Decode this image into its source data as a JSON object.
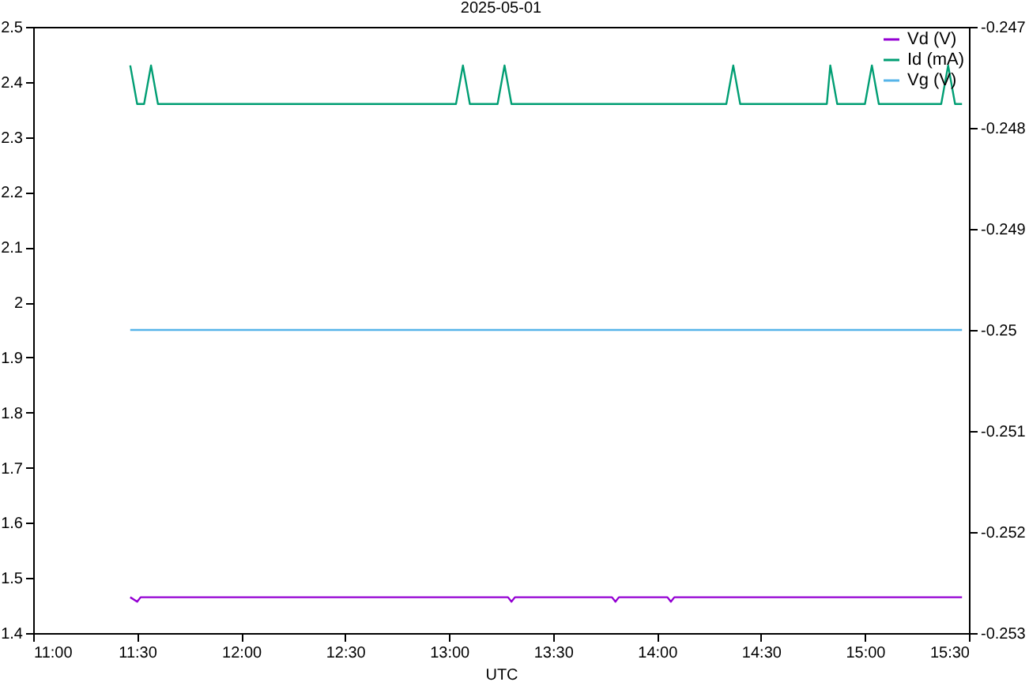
{
  "chart_data": {
    "type": "line",
    "title": "2025-05-01",
    "xlabel": "UTC",
    "xlim": [
      "2025-05-01T11:00",
      "2025-05-01T15:30"
    ],
    "xticks": [
      {
        "value": "2025-05-01T11:00",
        "label": "11:00"
      },
      {
        "value": "2025-05-01T11:30",
        "label": "11:30"
      },
      {
        "value": "2025-05-01T12:00",
        "label": "12:00"
      },
      {
        "value": "2025-05-01T12:30",
        "label": "12:30"
      },
      {
        "value": "2025-05-01T13:00",
        "label": "13:00"
      },
      {
        "value": "2025-05-01T13:30",
        "label": "13:30"
      },
      {
        "value": "2025-05-01T14:00",
        "label": "14:00"
      },
      {
        "value": "2025-05-01T14:30",
        "label": "14:30"
      },
      {
        "value": "2025-05-01T15:00",
        "label": "15:00"
      },
      {
        "value": "2025-05-01T15:30",
        "label": "15:30"
      }
    ],
    "ylim": [
      1.4,
      2.5
    ],
    "yticks": [
      1.4,
      1.5,
      1.6,
      1.7,
      1.8,
      1.9,
      2,
      2.1,
      2.2,
      2.3,
      2.4,
      2.5
    ],
    "y2lim": [
      -0.253,
      -0.247
    ],
    "y2ticks": [
      -0.253,
      -0.252,
      -0.251,
      -0.25,
      -0.249,
      -0.248,
      -0.247
    ],
    "grid": false,
    "legend": "top right",
    "series": [
      {
        "name": "Vd (V)",
        "color": "#9400d3",
        "x": [
          "2025-05-01T11:28",
          "2025-05-01T11:30",
          "2025-05-01T11:31",
          "2025-05-01T13:17",
          "2025-05-01T13:18",
          "2025-05-01T13:19",
          "2025-05-01T13:47",
          "2025-05-01T13:48",
          "2025-05-01T13:49",
          "2025-05-01T14:03",
          "2025-05-01T14:04",
          "2025-05-01T14:05",
          "2025-05-01T15:28"
        ],
        "values": [
          1.465,
          1.457,
          1.465,
          1.465,
          1.457,
          1.465,
          1.465,
          1.457,
          1.465,
          1.465,
          1.457,
          1.465,
          1.465
        ]
      },
      {
        "name": "Id (mA)",
        "color": "#009e73",
        "x": [
          "2025-05-01T11:28",
          "2025-05-01T11:30",
          "2025-05-01T11:32",
          "2025-05-01T11:34",
          "2025-05-01T11:36",
          "2025-05-01T13:02",
          "2025-05-01T13:04",
          "2025-05-01T13:06",
          "2025-05-01T13:14",
          "2025-05-01T13:16",
          "2025-05-01T13:18",
          "2025-05-01T14:20",
          "2025-05-01T14:22",
          "2025-05-01T14:24",
          "2025-05-01T14:49",
          "2025-05-01T14:50",
          "2025-05-01T14:52",
          "2025-05-01T15:00",
          "2025-05-01T15:02",
          "2025-05-01T15:04",
          "2025-05-01T15:22",
          "2025-05-01T15:24",
          "2025-05-01T15:26",
          "2025-05-01T15:28"
        ],
        "values": [
          2.43,
          2.36,
          2.36,
          2.43,
          2.36,
          2.36,
          2.43,
          2.36,
          2.36,
          2.43,
          2.36,
          2.36,
          2.43,
          2.36,
          2.36,
          2.43,
          2.36,
          2.36,
          2.43,
          2.36,
          2.36,
          2.43,
          2.36,
          2.36
        ]
      },
      {
        "name": "Vg (V)",
        "color": "#56b4e9",
        "axis": "y2",
        "x": [
          "2025-05-01T11:28",
          "2025-05-01T15:28"
        ],
        "values": [
          -0.25,
          -0.25
        ]
      }
    ]
  }
}
